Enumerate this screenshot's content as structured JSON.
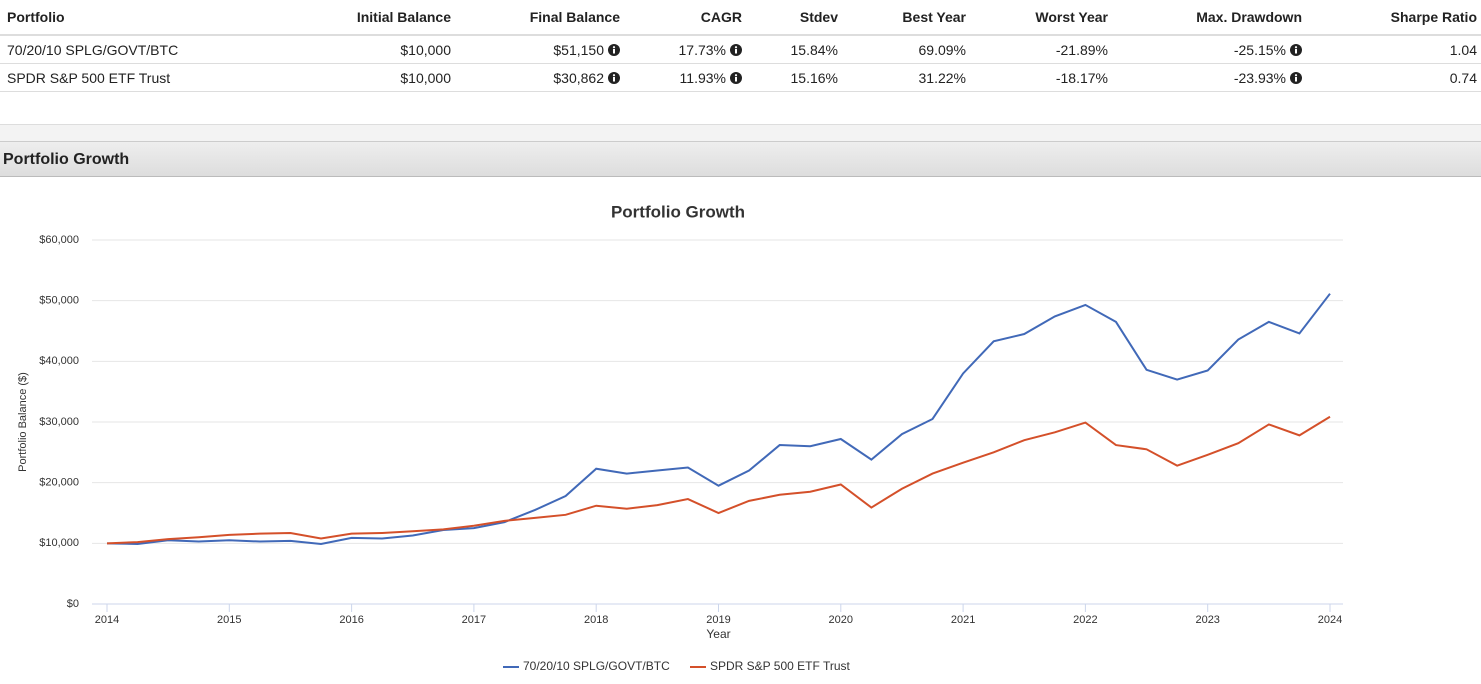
{
  "table": {
    "headers": [
      "Portfolio",
      "Initial Balance",
      "Final Balance",
      "CAGR",
      "Stdev",
      "Best Year",
      "Worst Year",
      "Max. Drawdown",
      "Sharpe Ratio"
    ],
    "rows": [
      [
        "70/20/10 SPLG/GOVT/BTC",
        "$10,000",
        "$51,150",
        "17.73%",
        "15.84%",
        "69.09%",
        "-21.89%",
        "-25.15%",
        "1.04"
      ],
      [
        "SPDR S&P 500 ETF Trust",
        "$10,000",
        "$30,862",
        "11.93%",
        "15.16%",
        "31.22%",
        "-18.17%",
        "-23.93%",
        "0.74"
      ]
    ]
  },
  "section_title": "Portfolio Growth",
  "chart_data": {
    "type": "line",
    "title": "Portfolio Growth",
    "x_label": "Year",
    "y_label": "Portfolio Balance ($)",
    "x": [
      2014,
      2014.25,
      2014.5,
      2014.75,
      2015,
      2015.25,
      2015.5,
      2015.75,
      2016,
      2016.25,
      2016.5,
      2016.75,
      2017,
      2017.25,
      2017.5,
      2017.75,
      2018,
      2018.25,
      2018.5,
      2018.75,
      2019,
      2019.25,
      2019.5,
      2019.75,
      2020,
      2020.25,
      2020.5,
      2020.75,
      2021,
      2021.25,
      2021.5,
      2021.75,
      2022,
      2022.25,
      2022.5,
      2022.75,
      2023,
      2023.25,
      2023.5,
      2023.75,
      2024
    ],
    "series": [
      {
        "name": "70/20/10 SPLG/GOVT/BTC",
        "color": "#4169b8",
        "values": [
          10000,
          9900,
          10500,
          10300,
          10500,
          10300,
          10400,
          9900,
          10900,
          10800,
          11300,
          12200,
          12500,
          13500,
          15500,
          17800,
          22300,
          21500,
          22000,
          22500,
          19500,
          22000,
          26200,
          26000,
          27200,
          23800,
          28000,
          30500,
          38000,
          43300,
          44500,
          47400,
          49300,
          46500,
          38600,
          37000,
          38500,
          43600,
          46500,
          44600,
          51150
        ]
      },
      {
        "name": "SPDR S&P 500 ETF Trust",
        "color": "#d4502a",
        "values": [
          10000,
          10200,
          10700,
          11000,
          11400,
          11600,
          11700,
          10800,
          11600,
          11700,
          12000,
          12300,
          12900,
          13700,
          14200,
          14700,
          16200,
          15700,
          16300,
          17300,
          15000,
          17000,
          18000,
          18500,
          19700,
          15900,
          19000,
          21500,
          23300,
          25000,
          27000,
          28300,
          29900,
          26200,
          25500,
          22800,
          24600,
          26500,
          29600,
          27800,
          30862
        ]
      }
    ],
    "xlim": [
      2014,
      2024
    ],
    "xticks": [
      2014,
      2015,
      2016,
      2017,
      2018,
      2019,
      2020,
      2021,
      2022,
      2023,
      2024
    ],
    "ylim": [
      0,
      60000
    ],
    "yticks": [
      {
        "value": 0,
        "label": "$0"
      },
      {
        "value": 10000,
        "label": "$10,000"
      },
      {
        "value": 20000,
        "label": "$20,000"
      },
      {
        "value": 30000,
        "label": "$30,000"
      },
      {
        "value": 40000,
        "label": "$40,000"
      },
      {
        "value": 50000,
        "label": "$50,000"
      },
      {
        "value": 60000,
        "label": "$60,000"
      }
    ],
    "grid": true,
    "legend": "bottom"
  }
}
